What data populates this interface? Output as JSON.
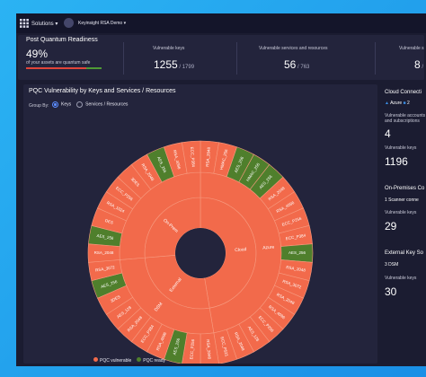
{
  "topbar": {
    "menu": "Solutions",
    "account": "Keyinsight RSA Demo"
  },
  "readiness": {
    "title": "Post Quantum Readiness",
    "percent": "49%",
    "caption": "of your assets are quantum safe",
    "stats": [
      {
        "label": "Vulnerable keys",
        "value": "1255",
        "total": "1799"
      },
      {
        "label": "Vulnerable services and resources",
        "value": "56",
        "total": "763"
      },
      {
        "label": "Vulnerable s",
        "value": "8"
      }
    ]
  },
  "chart_data": {
    "type": "sunburst",
    "title": "PQC Vulnerability by Keys and Services / Resources",
    "group_by": {
      "label": "Group By:",
      "options": [
        "Keys",
        "Services / Resources"
      ],
      "selected": 0
    },
    "legend": [
      {
        "name": "PQC vulnerable",
        "color": "#f26a4b"
      },
      {
        "name": "PQC ready",
        "color": "#4f7f2c"
      }
    ],
    "groups": [
      {
        "label": "Cloud",
        "child": "Azure",
        "leaves": [
          {
            "label": "RSA_2048",
            "ready": false
          },
          {
            "label": "HMAC_256",
            "ready": false
          },
          {
            "label": "AES_256",
            "ready": true
          },
          {
            "label": "HMAC_256",
            "ready": true
          },
          {
            "label": "AES_256",
            "ready": true
          },
          {
            "label": "RSA_2048",
            "ready": false
          },
          {
            "label": "RSA_4096",
            "ready": false
          },
          {
            "label": "ECC_P256",
            "ready": false
          },
          {
            "label": "ECC_P384",
            "ready": false
          },
          {
            "label": "AES_256",
            "ready": true
          },
          {
            "label": "RSA_2048",
            "ready": false
          },
          {
            "label": "RSA_3072",
            "ready": false
          },
          {
            "label": "RSA_2048",
            "ready": false
          },
          {
            "label": "RSA_4096",
            "ready": false
          },
          {
            "label": "ECC_P256",
            "ready": false
          },
          {
            "label": "AES_128",
            "ready": false
          },
          {
            "label": "RSA_2048",
            "ready": false
          },
          {
            "label": "ECC_P521",
            "ready": false
          }
        ]
      },
      {
        "label": "External",
        "child": "DSM",
        "leaves": [
          {
            "label": "RSA_2048",
            "ready": false
          },
          {
            "label": "ECC_P256",
            "ready": false
          },
          {
            "label": "AES_256",
            "ready": true
          },
          {
            "label": "RSA_4096",
            "ready": false
          },
          {
            "label": "ECC_P384",
            "ready": false
          },
          {
            "label": "RSA_2048",
            "ready": false
          },
          {
            "label": "AES_128",
            "ready": false
          },
          {
            "label": "3DES",
            "ready": false
          },
          {
            "label": "AES_256",
            "ready": true
          },
          {
            "label": "RSA_3072",
            "ready": false
          }
        ]
      },
      {
        "label": "On-Prem",
        "child": null,
        "leaves": [
          {
            "label": "RSA_2048",
            "ready": false
          },
          {
            "label": "AES_256",
            "ready": true
          },
          {
            "label": "DES",
            "ready": false
          },
          {
            "label": "RSA_1024",
            "ready": false
          },
          {
            "label": "ECC_P256",
            "ready": false
          },
          {
            "label": "3DES",
            "ready": false
          },
          {
            "label": "RSA_2048",
            "ready": false
          },
          {
            "label": "AES_256",
            "ready": true
          },
          {
            "label": "RSA_4096",
            "ready": false
          },
          {
            "label": "ECC_P384",
            "ready": false
          }
        ]
      }
    ]
  },
  "side": {
    "cloud": {
      "title": "Cloud Connecti",
      "provider": "Azure",
      "count": "2",
      "accounts_label": "Vulnerable accounts and subscriptions",
      "accounts": "4",
      "keys_label": "Vulnerable keys",
      "keys": "1196"
    },
    "onprem": {
      "title": "On-Premises Co",
      "connector": "1 Scanner conne",
      "keys_label": "Vulnerable keys",
      "keys": "29"
    },
    "external": {
      "title": "External Key So",
      "source": "3 DSM",
      "keys_label": "Vulnerable keys",
      "keys": "30"
    }
  }
}
